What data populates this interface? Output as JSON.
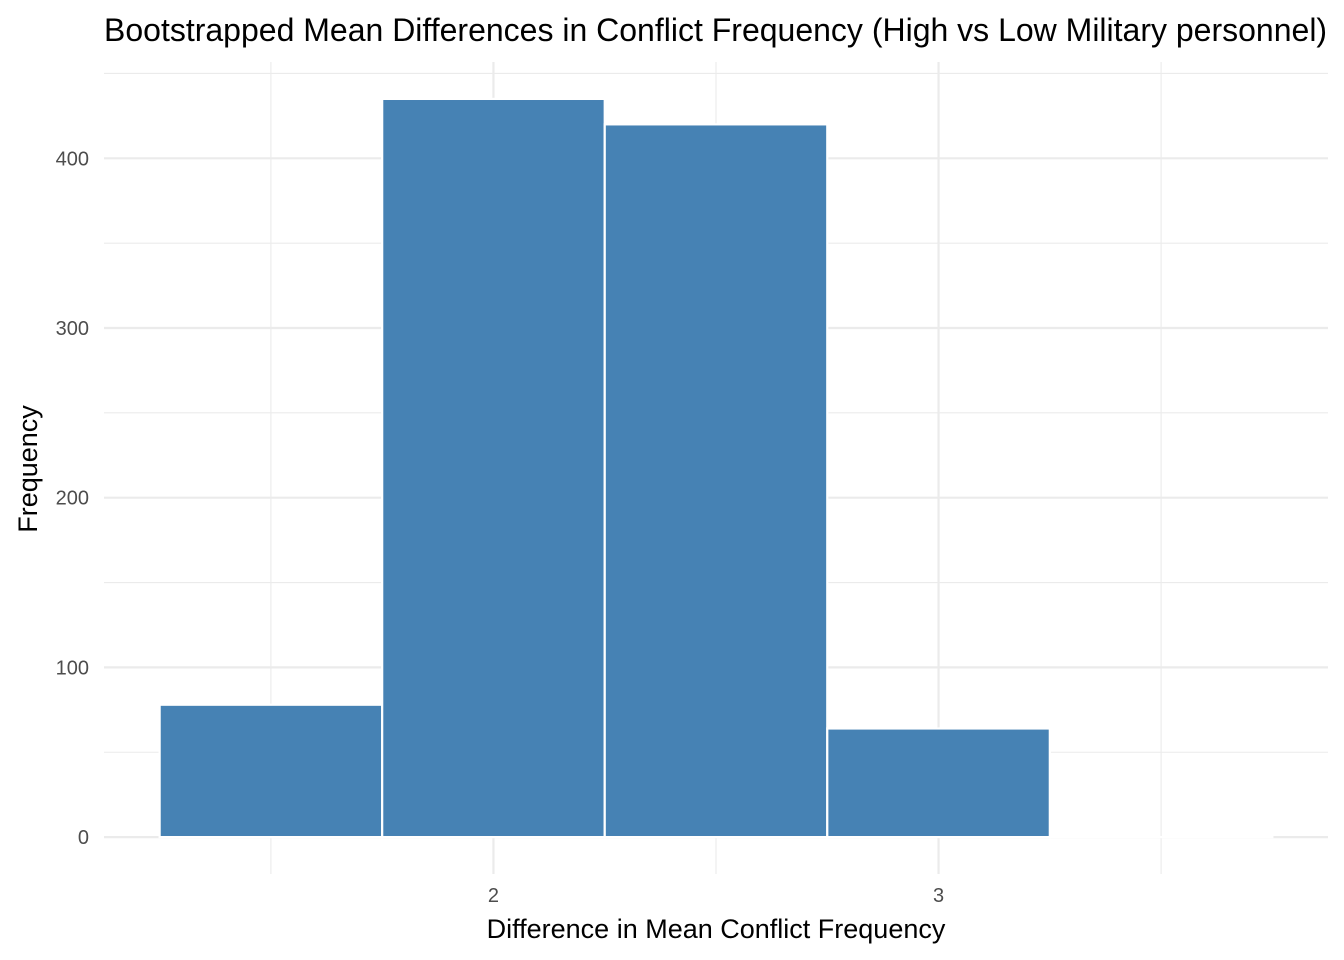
{
  "chart_data": {
    "type": "bar",
    "title": "Bootstrapped Mean Differences in Conflict Frequency (High vs Low  Military personnel)",
    "xlabel": "Difference in Mean Conflict Frequency",
    "ylabel": "Frequency",
    "bins": [
      {
        "start": 1.25,
        "end": 1.75,
        "count": 78
      },
      {
        "start": 1.75,
        "end": 2.25,
        "count": 435
      },
      {
        "start": 2.25,
        "end": 2.75,
        "count": 420
      },
      {
        "start": 2.75,
        "end": 3.25,
        "count": 64
      },
      {
        "start": 3.25,
        "end": 3.75,
        "count": 0
      }
    ],
    "xlim": [
      1.125,
      3.875
    ],
    "ylim": [
      -21.75,
      456.75
    ],
    "x_ticks": [
      2,
      3
    ],
    "x_tick_labels": [
      "2",
      "3"
    ],
    "y_ticks": [
      0,
      100,
      200,
      300,
      400
    ],
    "y_tick_labels": [
      "0",
      "100",
      "200",
      "300",
      "400"
    ],
    "bar_color": "#4682B4",
    "bar_outline_color": "#FFFFFF",
    "grid": true,
    "legend": "none"
  }
}
